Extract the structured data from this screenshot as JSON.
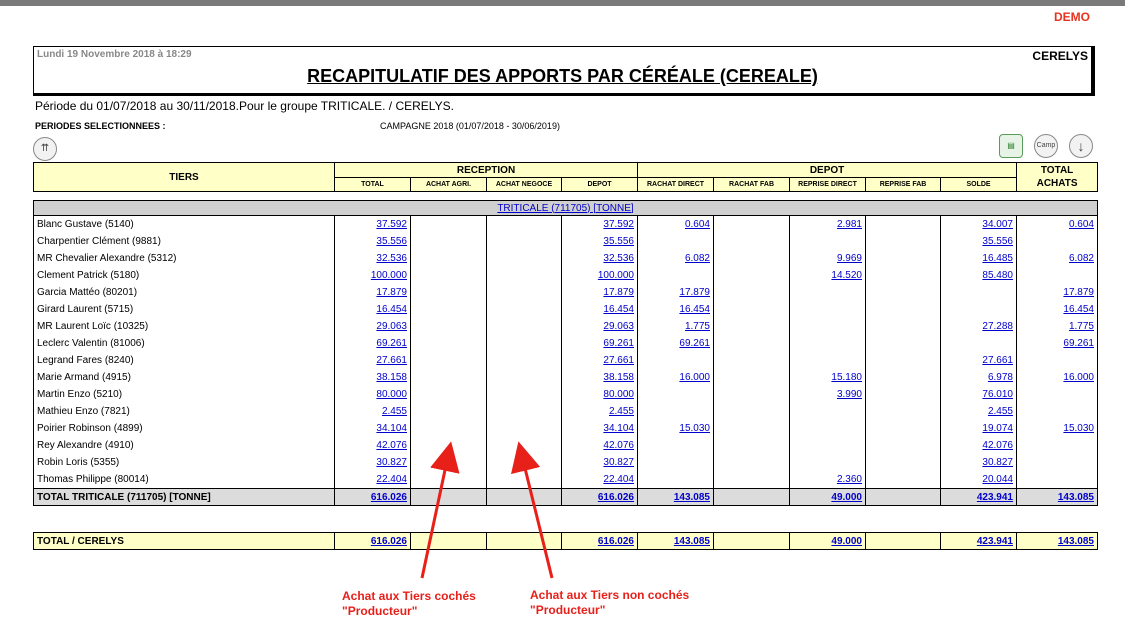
{
  "demo_label": "DEMO",
  "header": {
    "date": "Lundi 19 Novembre 2018 à 18:29",
    "company": "CERELYS",
    "title": "RECAPITULATIF DES APPORTS PAR CÉRÉALE (CEREALE)"
  },
  "periode": "Période du 01/07/2018 au 30/11/2018.Pour le groupe TRITICALE. / CERELYS.",
  "selection": {
    "label": "PERIODES SELECTIONNEES :",
    "value": "CAMPAGNE 2018 (01/07/2018 - 30/06/2019)"
  },
  "icons": {
    "up": "double-up-icon",
    "print": "printer-icon",
    "camp": "camp-icon",
    "down": "arrow-down-icon"
  },
  "icon_labels": {
    "up": "⇈",
    "print": "▤",
    "camp": "Camp",
    "down": "↓"
  },
  "table": {
    "tiers": "TIERS",
    "reception": "RECEPTION",
    "depot_group": "DEPOT",
    "total_achats": "TOTAL ACHATS",
    "sub": [
      "TOTAL",
      "ACHAT AGRI.",
      "ACHAT NEGOCE",
      "DEPOT",
      "RACHAT DIRECT",
      "RACHAT FAB",
      "REPRISE DIRECT",
      "REPRISE FAB",
      "SOLDE"
    ],
    "category": "TRITICALE (711705) [TONNE]",
    "rows": [
      {
        "name": "Blanc Gustave (5140)",
        "v": [
          "37.592",
          "",
          "",
          "37.592",
          "0.604",
          "",
          "2.981",
          "",
          "34.007",
          "0.604"
        ]
      },
      {
        "name": "Charpentier Clément (9881)",
        "v": [
          "35.556",
          "",
          "",
          "35.556",
          "",
          "",
          "",
          "",
          "35.556",
          ""
        ]
      },
      {
        "name": "MR Chevalier Alexandre (5312)",
        "v": [
          "32.536",
          "",
          "",
          "32.536",
          "6.082",
          "",
          "9.969",
          "",
          "16.485",
          "6.082"
        ]
      },
      {
        "name": "Clement Patrick (5180)",
        "v": [
          "100.000",
          "",
          "",
          "100.000",
          "",
          "",
          "14.520",
          "",
          "85.480",
          ""
        ]
      },
      {
        "name": "Garcia Mattéo (80201)",
        "v": [
          "17.879",
          "",
          "",
          "17.879",
          "17.879",
          "",
          "",
          "",
          "",
          "17.879"
        ]
      },
      {
        "name": "Girard Laurent (5715)",
        "v": [
          "16.454",
          "",
          "",
          "16.454",
          "16.454",
          "",
          "",
          "",
          "",
          "16.454"
        ]
      },
      {
        "name": "MR Laurent Loïc (10325)",
        "v": [
          "29.063",
          "",
          "",
          "29.063",
          "1.775",
          "",
          "",
          "",
          "27.288",
          "1.775"
        ]
      },
      {
        "name": "Leclerc Valentin (81006)",
        "v": [
          "69.261",
          "",
          "",
          "69.261",
          "69.261",
          "",
          "",
          "",
          "",
          "69.261"
        ]
      },
      {
        "name": "Legrand Fares (8240)",
        "v": [
          "27.661",
          "",
          "",
          "27.661",
          "",
          "",
          "",
          "",
          "27.661",
          ""
        ]
      },
      {
        "name": "Marie Armand (4915)",
        "v": [
          "38.158",
          "",
          "",
          "38.158",
          "16.000",
          "",
          "15.180",
          "",
          "6.978",
          "16.000"
        ]
      },
      {
        "name": "Martin Enzo (5210)",
        "v": [
          "80.000",
          "",
          "",
          "80.000",
          "",
          "",
          "3.990",
          "",
          "76.010",
          ""
        ]
      },
      {
        "name": "Mathieu Enzo (7821)",
        "v": [
          "2.455",
          "",
          "",
          "2.455",
          "",
          "",
          "",
          "",
          "2.455",
          ""
        ]
      },
      {
        "name": "Poirier Robinson (4899)",
        "v": [
          "34.104",
          "",
          "",
          "34.104",
          "15.030",
          "",
          "",
          "",
          "19.074",
          "15.030"
        ]
      },
      {
        "name": "Rey Alexandre (4910)",
        "v": [
          "42.076",
          "",
          "",
          "42.076",
          "",
          "",
          "",
          "",
          "42.076",
          ""
        ]
      },
      {
        "name": "Robin Loris (5355)",
        "v": [
          "30.827",
          "",
          "",
          "30.827",
          "",
          "",
          "",
          "",
          "30.827",
          ""
        ]
      },
      {
        "name": "Thomas Philippe (80014)",
        "v": [
          "22.404",
          "",
          "",
          "22.404",
          "",
          "",
          "2.360",
          "",
          "20.044",
          ""
        ]
      }
    ],
    "total": {
      "name": "TOTAL TRITICALE (711705) [TONNE]",
      "v": [
        "616.026",
        "",
        "",
        "616.026",
        "143.085",
        "",
        "49.000",
        "",
        "423.941",
        "143.085"
      ]
    },
    "grand": {
      "name": "TOTAL / CERELYS",
      "v": [
        "616.026",
        "",
        "",
        "616.026",
        "143.085",
        "",
        "49.000",
        "",
        "423.941",
        "143.085"
      ]
    }
  },
  "annotations": {
    "left_line1": "Achat aux Tiers cochés",
    "left_line2": "\"Producteur\"",
    "right_line1": "Achat aux Tiers non cochés",
    "right_line2": "\"Producteur\""
  }
}
